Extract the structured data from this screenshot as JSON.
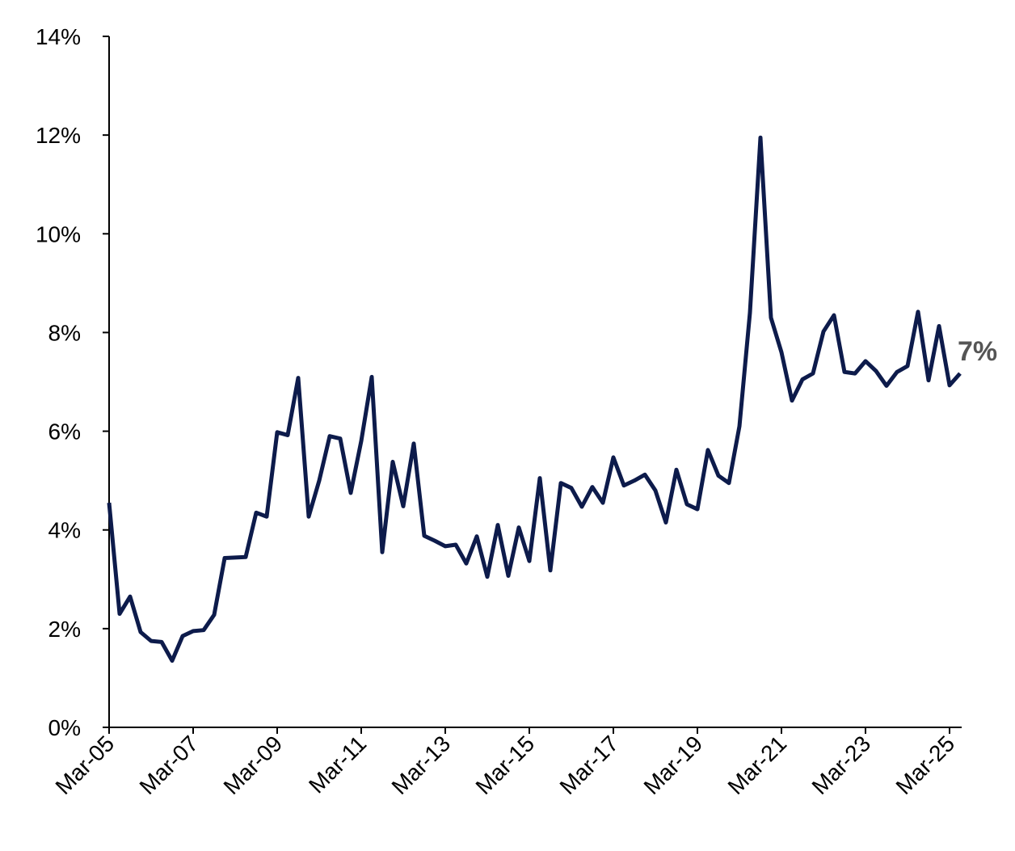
{
  "chart_data": {
    "type": "line",
    "categories": [
      "Mar-05",
      null,
      null,
      null,
      null,
      null,
      null,
      null,
      "Mar-07",
      null,
      null,
      null,
      null,
      null,
      null,
      null,
      "Mar-09",
      null,
      null,
      null,
      null,
      null,
      null,
      null,
      "Mar-11",
      null,
      null,
      null,
      null,
      null,
      null,
      null,
      "Mar-13",
      null,
      null,
      null,
      null,
      null,
      null,
      null,
      "Mar-15",
      null,
      null,
      null,
      null,
      null,
      null,
      null,
      "Mar-17",
      null,
      null,
      null,
      null,
      null,
      null,
      null,
      "Mar-19",
      null,
      null,
      null,
      null,
      null,
      null,
      null,
      "Mar-21",
      null,
      null,
      null,
      null,
      null,
      null,
      null,
      "Mar-23",
      null,
      null,
      null,
      null,
      null,
      null,
      null,
      "Mar-25",
      null
    ],
    "series": [
      {
        "color": "#0d1b4b",
        "values": [
          4.55,
          2.3,
          2.65,
          1.93,
          1.75,
          1.73,
          1.35,
          1.85,
          1.95,
          1.97,
          2.28,
          3.43,
          3.44,
          3.45,
          4.35,
          4.27,
          5.98,
          5.92,
          7.08,
          4.27,
          5.0,
          5.9,
          5.85,
          4.75,
          5.8,
          7.1,
          3.55,
          5.38,
          4.48,
          5.75,
          3.88,
          3.78,
          3.67,
          3.7,
          3.32,
          3.87,
          3.05,
          4.1,
          3.07,
          4.05,
          3.37,
          5.05,
          3.18,
          4.95,
          4.85,
          4.47,
          4.87,
          4.55,
          5.47,
          4.9,
          5.0,
          5.12,
          4.8,
          4.15,
          5.22,
          4.52,
          4.42,
          5.62,
          5.1,
          4.95,
          6.1,
          8.4,
          11.95,
          8.3,
          7.6,
          6.62,
          7.05,
          7.17,
          8.02,
          8.35,
          7.2,
          7.17,
          7.42,
          7.22,
          6.92,
          7.2,
          7.32,
          8.42,
          7.03,
          8.13,
          6.93,
          7.17
        ]
      }
    ],
    "annotation": "7%",
    "ylim": [
      0,
      14
    ],
    "yticks": [
      {
        "value": 0,
        "label": "0%"
      },
      {
        "value": 2,
        "label": "2%"
      },
      {
        "value": 4,
        "label": "4%"
      },
      {
        "value": 6,
        "label": "6%"
      },
      {
        "value": 8,
        "label": "8%"
      },
      {
        "value": 10,
        "label": "10%"
      },
      {
        "value": 12,
        "label": "12%"
      },
      {
        "value": 14,
        "label": "14%"
      }
    ],
    "grid": false
  }
}
